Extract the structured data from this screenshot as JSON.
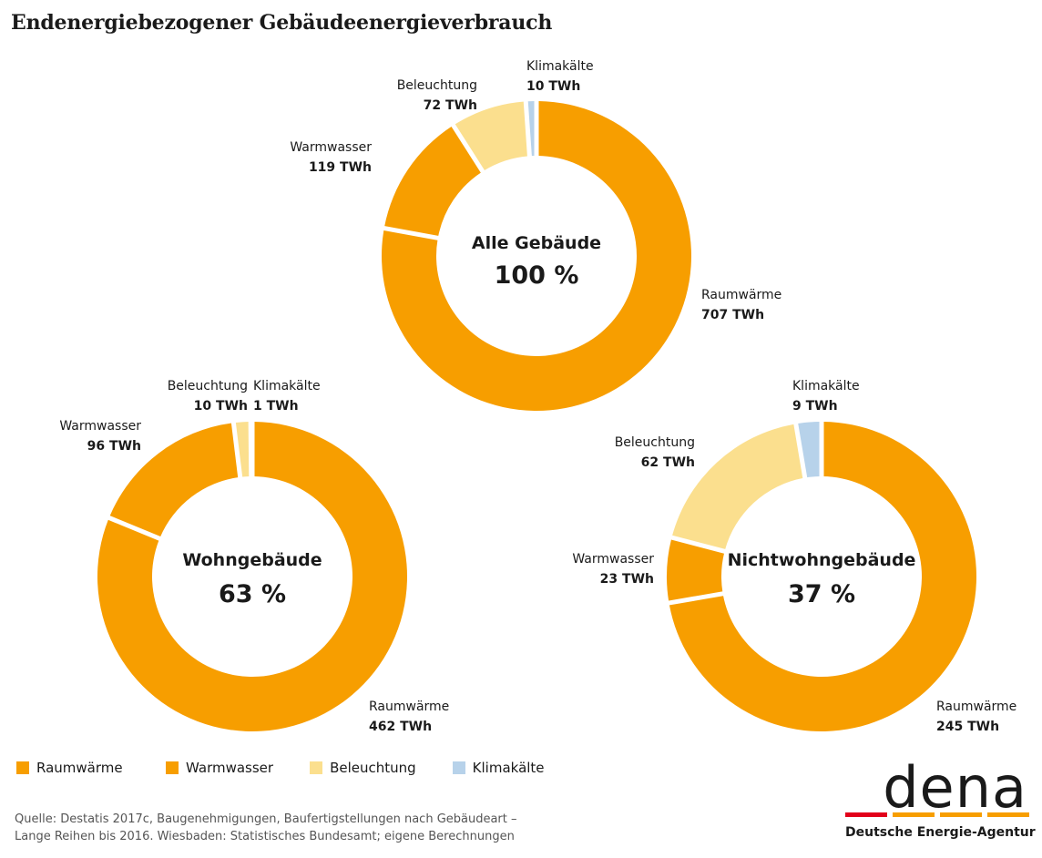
{
  "title": "Endenergiebezogener Gebäudeenergieverbrauch",
  "colors": {
    "Raumwärme": "#F79E00",
    "Warmwasser": "#F79E00",
    "Beleuchtung": "#FBDF8E",
    "Klimakälte": "#B7D2EA"
  },
  "chart_data": [
    {
      "type": "pie",
      "title": "Alle Gebäude",
      "center_value": "100 %",
      "unit": "TWh",
      "slices": [
        {
          "label": "Raumwärme",
          "value": 707,
          "value_label": "707 TWh"
        },
        {
          "label": "Warmwasser",
          "value": 119,
          "value_label": "119 TWh"
        },
        {
          "label": "Beleuchtung",
          "value": 72,
          "value_label": "72 TWh"
        },
        {
          "label": "Klimakälte",
          "value": 10,
          "value_label": "10 TWh"
        }
      ]
    },
    {
      "type": "pie",
      "title": "Wohngebäude",
      "center_value": "63 %",
      "unit": "TWh",
      "slices": [
        {
          "label": "Raumwärme",
          "value": 462,
          "value_label": "462 TWh"
        },
        {
          "label": "Warmwasser",
          "value": 96,
          "value_label": "96 TWh"
        },
        {
          "label": "Beleuchtung",
          "value": 10,
          "value_label": "10 TWh"
        },
        {
          "label": "Klimakälte",
          "value": 1,
          "value_label": "1 TWh"
        }
      ]
    },
    {
      "type": "pie",
      "title": "Nichtwohngebäude",
      "center_value": "37 %",
      "unit": "TWh",
      "slices": [
        {
          "label": "Raumwärme",
          "value": 245,
          "value_label": "245 TWh"
        },
        {
          "label": "Warmwasser",
          "value": 23,
          "value_label": "23 TWh"
        },
        {
          "label": "Beleuchtung",
          "value": 62,
          "value_label": "62 TWh"
        },
        {
          "label": "Klimakälte",
          "value": 9,
          "value_label": "9 TWh"
        }
      ]
    }
  ],
  "legend": [
    "Raumwärme",
    "Warmwasser",
    "Beleuchtung",
    "Klimakälte"
  ],
  "source": {
    "line1": "Quelle: Destatis 2017c, Baugenehmigungen, Baufertigstellungen nach Gebäudeart –",
    "line2": "Lange Reihen bis 2016. Wiesbaden: Statistisches Bundesamt; eigene Berechnungen"
  },
  "logo": {
    "word": "dena",
    "subtitle": "Deutsche Energie-Agentur",
    "bar_colors": [
      "#E2001A",
      "#F79E00",
      "#F79E00",
      "#F79E00"
    ]
  }
}
